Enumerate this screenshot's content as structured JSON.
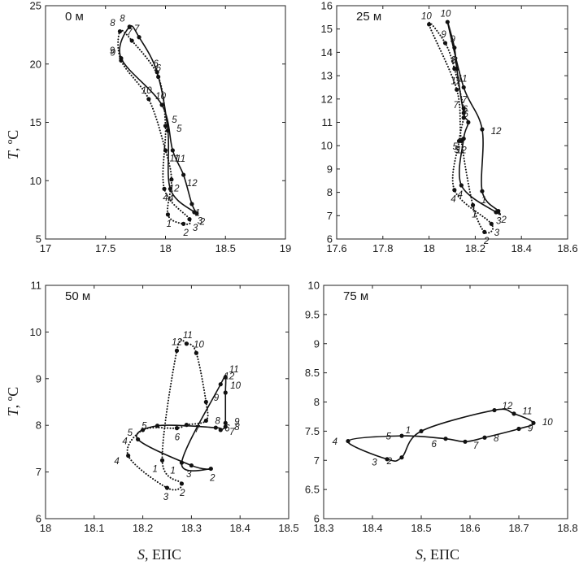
{
  "ylabel_var": "T",
  "ylabel_unit": ", ºС",
  "xlabel_var": "S",
  "xlabel_unit": ", ЕПС",
  "chart_data": [
    {
      "type": "line",
      "title": "0 м",
      "xlim": [
        17,
        19
      ],
      "ylim": [
        5,
        25
      ],
      "xticks": [
        "17",
        "17.5",
        "18",
        "18.5",
        "19"
      ],
      "yticks": [
        "5",
        "10",
        "15",
        "20",
        "25"
      ],
      "series": [
        {
          "style": "solid",
          "points": [
            {
              "label": "1",
              "x": 18.22,
              "y": 8.0
            },
            {
              "label": "2",
              "x": 18.26,
              "y": 7.2
            },
            {
              "label": "3",
              "x": 18.24,
              "y": 7.3
            },
            {
              "label": "4",
              "x": 18.04,
              "y": 9.3
            },
            {
              "label": "5",
              "x": 18.02,
              "y": 14.3
            },
            {
              "label": "6",
              "x": 17.93,
              "y": 19.3
            },
            {
              "label": "7",
              "x": 17.78,
              "y": 22.3
            },
            {
              "label": "8",
              "x": 17.7,
              "y": 23.2
            },
            {
              "label": "9",
              "x": 17.63,
              "y": 20.5
            },
            {
              "label": "10",
              "x": 17.97,
              "y": 16.5
            },
            {
              "label": "11",
              "x": 18.06,
              "y": 12.6
            },
            {
              "label": "12",
              "x": 18.15,
              "y": 10.5
            }
          ]
        },
        {
          "style": "dotted",
          "points": [
            {
              "label": "1",
              "x": 18.02,
              "y": 7.1
            },
            {
              "label": "2",
              "x": 18.15,
              "y": 6.3
            },
            {
              "label": "3",
              "x": 18.2,
              "y": 6.7
            },
            {
              "label": "4",
              "x": 17.99,
              "y": 9.3
            },
            {
              "label": "5",
              "x": 18.0,
              "y": 14.7
            },
            {
              "label": "6",
              "x": 17.94,
              "y": 18.9
            },
            {
              "label": "7",
              "x": 17.72,
              "y": 22.0
            },
            {
              "label": "8",
              "x": 17.62,
              "y": 22.8
            },
            {
              "label": "9",
              "x": 17.63,
              "y": 20.3
            },
            {
              "label": "10",
              "x": 17.86,
              "y": 17.0
            },
            {
              "label": "11",
              "x": 18.0,
              "y": 12.6
            },
            {
              "label": "12",
              "x": 18.05,
              "y": 10.1
            }
          ]
        }
      ]
    },
    {
      "type": "line",
      "title": "25 м",
      "xlim": [
        17.6,
        18.6
      ],
      "ylim": [
        6,
        16
      ],
      "xticks": [
        "17.6",
        "17.8",
        "18",
        "18.2",
        "18.4",
        "18.6"
      ],
      "yticks": [
        "6",
        "7",
        "8",
        "9",
        "10",
        "11",
        "12",
        "13",
        "14",
        "15",
        "16"
      ],
      "series": [
        {
          "style": "solid",
          "points": [
            {
              "label": "1",
              "x": 18.23,
              "y": 8.05
            },
            {
              "label": "2",
              "x": 18.3,
              "y": 7.2
            },
            {
              "label": "3",
              "x": 18.29,
              "y": 7.15
            },
            {
              "label": "4",
              "x": 18.14,
              "y": 8.3
            },
            {
              "label": "5",
              "x": 18.15,
              "y": 10.3
            },
            {
              "label": "6",
              "x": 18.17,
              "y": 11.0
            },
            {
              "label": "7",
              "x": 18.15,
              "y": 11.4
            },
            {
              "label": "8",
              "x": 18.12,
              "y": 13.3
            },
            {
              "label": "9",
              "x": 18.11,
              "y": 14.2
            },
            {
              "label": "10",
              "x": 18.08,
              "y": 15.3
            },
            {
              "label": "11",
              "x": 18.15,
              "y": 12.5
            },
            {
              "label": "12",
              "x": 18.23,
              "y": 10.7
            }
          ]
        },
        {
          "style": "dotted",
          "points": [
            {
              "label": "1",
              "x": 18.19,
              "y": 7.45
            },
            {
              "label": "2",
              "x": 18.24,
              "y": 6.3
            },
            {
              "label": "3",
              "x": 18.27,
              "y": 6.65
            },
            {
              "label": "4",
              "x": 18.11,
              "y": 8.1
            },
            {
              "label": "5",
              "x": 18.13,
              "y": 10.2
            },
            {
              "label": "6",
              "x": 18.15,
              "y": 11.2
            },
            {
              "label": "7",
              "x": 18.15,
              "y": 11.6
            },
            {
              "label": "8",
              "x": 18.11,
              "y": 13.3
            },
            {
              "label": "9",
              "x": 18.07,
              "y": 14.4
            },
            {
              "label": "10",
              "x": 18.0,
              "y": 15.2
            },
            {
              "label": "11",
              "x": 18.12,
              "y": 12.4
            },
            {
              "label": "12",
              "x": 18.14,
              "y": 10.2
            }
          ]
        }
      ]
    },
    {
      "type": "line",
      "title": "50 м",
      "xlim": [
        18,
        18.5
      ],
      "ylim": [
        6,
        11
      ],
      "xticks": [
        "18",
        "18.1",
        "18.2",
        "18.3",
        "18.4",
        "18.5"
      ],
      "yticks": [
        "6",
        "7",
        "8",
        "9",
        "10",
        "11"
      ],
      "series": [
        {
          "style": "solid",
          "points": [
            {
              "label": "1",
              "x": 18.28,
              "y": 7.2
            },
            {
              "label": "2",
              "x": 18.34,
              "y": 7.07
            },
            {
              "label": "3",
              "x": 18.3,
              "y": 7.14
            },
            {
              "label": "4",
              "x": 18.19,
              "y": 7.7
            },
            {
              "label": "5",
              "x": 18.23,
              "y": 7.99
            },
            {
              "label": "6",
              "x": 18.35,
              "y": 7.95
            },
            {
              "label": "7",
              "x": 18.36,
              "y": 7.9
            },
            {
              "label": "8",
              "x": 18.37,
              "y": 7.97
            },
            {
              "label": "9",
              "x": 18.37,
              "y": 8.05
            },
            {
              "label": "10",
              "x": 18.37,
              "y": 8.7
            },
            {
              "label": "11",
              "x": 18.37,
              "y": 9.03
            },
            {
              "label": "12",
              "x": 18.36,
              "y": 8.88
            }
          ]
        },
        {
          "style": "dotted",
          "points": [
            {
              "label": "1",
              "x": 18.24,
              "y": 7.25
            },
            {
              "label": "2",
              "x": 18.28,
              "y": 6.75
            },
            {
              "label": "3",
              "x": 18.25,
              "y": 6.66
            },
            {
              "label": "4",
              "x": 18.17,
              "y": 7.35
            },
            {
              "label": "5",
              "x": 18.2,
              "y": 7.9
            },
            {
              "label": "6",
              "x": 18.27,
              "y": 7.94
            },
            {
              "label": "7",
              "x": 18.29,
              "y": 8.01
            },
            {
              "label": "8",
              "x": 18.33,
              "y": 8.1
            },
            {
              "label": "9",
              "x": 18.33,
              "y": 8.5
            },
            {
              "label": "10",
              "x": 18.31,
              "y": 9.55
            },
            {
              "label": "11",
              "x": 18.29,
              "y": 9.75
            },
            {
              "label": "12",
              "x": 18.27,
              "y": 9.6
            }
          ]
        }
      ]
    },
    {
      "type": "line",
      "title": "75 м",
      "xlim": [
        18.3,
        18.8
      ],
      "ylim": [
        6,
        10
      ],
      "xticks": [
        "18.3",
        "18.4",
        "18.5",
        "18.6",
        "18.7",
        "18.8"
      ],
      "yticks": [
        "6",
        "6.5",
        "7",
        "7.5",
        "8",
        "8.5",
        "9",
        "9.5",
        "10"
      ],
      "series": [
        {
          "style": "solid",
          "points": [
            {
              "label": "1",
              "x": 18.5,
              "y": 7.5
            },
            {
              "label": "2",
              "x": 18.46,
              "y": 7.05
            },
            {
              "label": "3",
              "x": 18.43,
              "y": 7.02
            },
            {
              "label": "4",
              "x": 18.35,
              "y": 7.33
            },
            {
              "label": "5",
              "x": 18.46,
              "y": 7.42
            },
            {
              "label": "6",
              "x": 18.55,
              "y": 7.37
            },
            {
              "label": "7",
              "x": 18.59,
              "y": 7.32
            },
            {
              "label": "8",
              "x": 18.63,
              "y": 7.39
            },
            {
              "label": "9",
              "x": 18.7,
              "y": 7.54
            },
            {
              "label": "10",
              "x": 18.73,
              "y": 7.64
            },
            {
              "label": "11",
              "x": 18.69,
              "y": 7.8
            },
            {
              "label": "12",
              "x": 18.65,
              "y": 7.86
            }
          ]
        }
      ]
    }
  ]
}
